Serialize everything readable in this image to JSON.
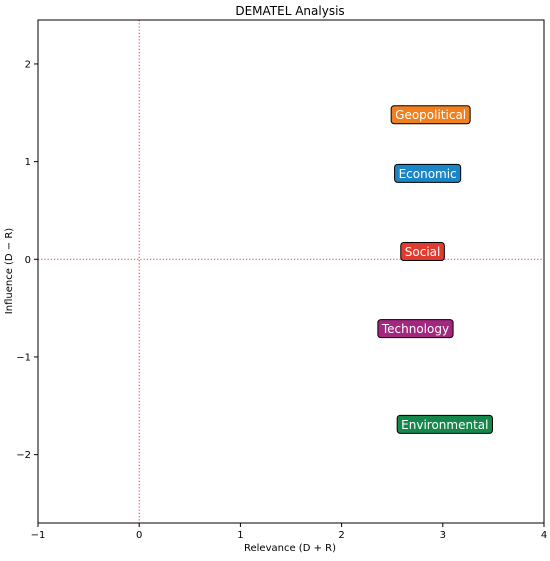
{
  "chart_data": {
    "type": "scatter",
    "title": "DEMATEL Analysis",
    "xlabel": "Relevance (D + R)",
    "ylabel": "Influence (D − R)",
    "xlim": [
      -1,
      4
    ],
    "ylim": [
      -2.7,
      2.45
    ],
    "xticks": [
      -1,
      0,
      1,
      2,
      3,
      4
    ],
    "yticks": [
      -2,
      -1,
      0,
      1,
      2
    ],
    "grid": false,
    "reference_lines": {
      "x": 0,
      "y": 0,
      "color": "#e03c31",
      "style": "dotted"
    },
    "points": [
      {
        "label": "Geopolitical",
        "x": 2.88,
        "y": 1.48,
        "color": "#f07f1d"
      },
      {
        "label": "Economic",
        "x": 2.85,
        "y": 0.88,
        "color": "#1a86c8"
      },
      {
        "label": "Social",
        "x": 2.8,
        "y": 0.08,
        "color": "#e23a2e"
      },
      {
        "label": "Technology",
        "x": 2.73,
        "y": -0.71,
        "color": "#a3267f"
      },
      {
        "label": "Environmental",
        "x": 3.02,
        "y": -1.69,
        "color": "#16874b"
      }
    ]
  }
}
